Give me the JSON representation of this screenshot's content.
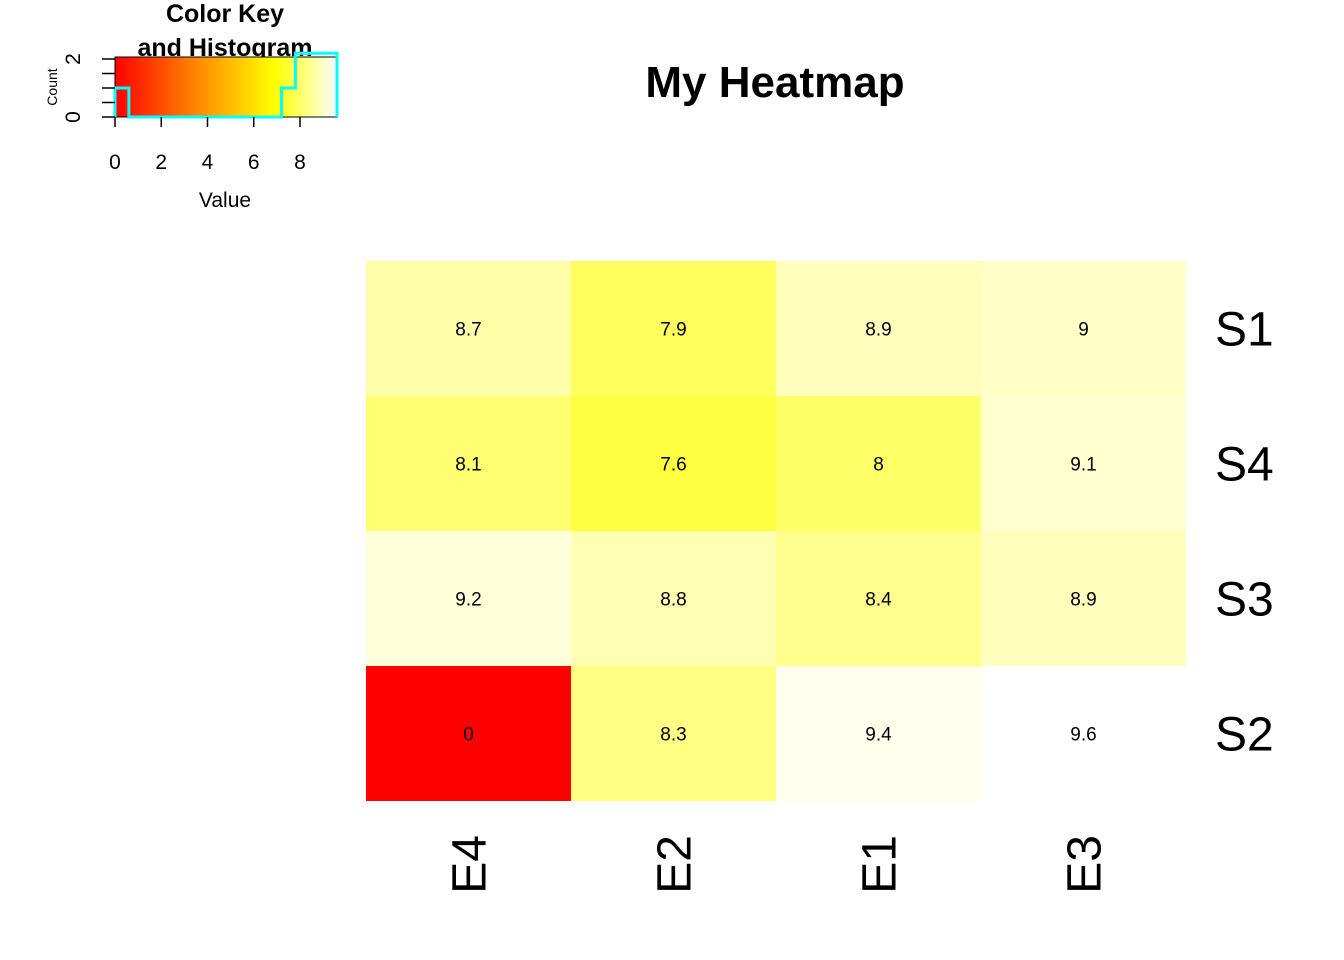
{
  "chart_data": {
    "type": "heatmap",
    "title": "My Heatmap",
    "columns": [
      "E4",
      "E2",
      "E1",
      "E3"
    ],
    "rows": [
      "S1",
      "S4",
      "S3",
      "S2"
    ],
    "values": [
      [
        8.7,
        7.9,
        8.9,
        9
      ],
      [
        8.1,
        7.6,
        8,
        9.1
      ],
      [
        9.2,
        8.8,
        8.4,
        8.9
      ],
      [
        0,
        8.3,
        9.4,
        9.6
      ]
    ],
    "cell_labels": [
      [
        "8.7",
        "7.9",
        "8.9",
        "9"
      ],
      [
        "8.1",
        "7.6",
        "8",
        "9.1"
      ],
      [
        "9.2",
        "8.8",
        "8.4",
        "8.9"
      ],
      [
        "0",
        "8.3",
        "9.4",
        "9.6"
      ]
    ],
    "color_scale": {
      "low": "#ff0000",
      "mid": "#ffff00",
      "high": "#ffffff",
      "range": [
        0,
        9.6
      ]
    },
    "color_key": {
      "title_line1": "Color Key",
      "title_line2": "and Histogram",
      "xlabel": "Value",
      "ylabel": "Count",
      "x_ticks": [
        "0",
        "2",
        "4",
        "6",
        "8"
      ],
      "y_ticks": [
        "0",
        "2"
      ],
      "histogram_color": "#00ffff"
    }
  }
}
